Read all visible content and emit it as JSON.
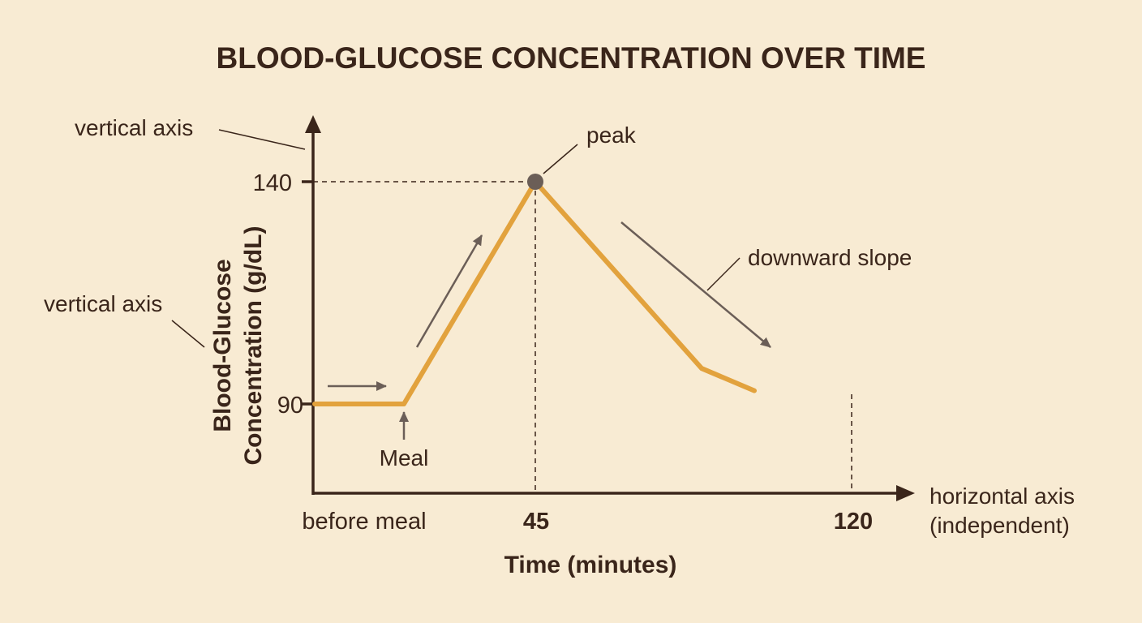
{
  "chart_data": {
    "type": "line",
    "title": "BLOOD-GLUCOSE CONCENTRATION OVER TIME",
    "xlabel": "Time (minutes)",
    "ylabel_line1": "Blood-Glucose",
    "ylabel_line2": "Concentration (g/dL)",
    "x_ticks": [
      {
        "value": 0,
        "label": "before meal"
      },
      {
        "value": 45,
        "label": "45"
      },
      {
        "value": 120,
        "label": "120"
      }
    ],
    "y_ticks": [
      {
        "value": 90,
        "label": "90"
      },
      {
        "value": 140,
        "label": "140"
      }
    ],
    "xlim": [
      -38,
      130
    ],
    "ylim": [
      70,
      155
    ],
    "series": [
      {
        "color": "#e2a23d",
        "x": [
          -38,
          0,
          45,
          102,
          120
        ],
        "y": [
          90,
          90,
          140,
          98,
          93
        ]
      }
    ],
    "peak": {
      "x": 45,
      "y": 140,
      "label": "peak"
    },
    "annotations": {
      "vertical_axis_top": "vertical axis",
      "vertical_axis_side": "vertical axis",
      "meal": "Meal",
      "downward_slope": "downward slope",
      "horizontal_axis_line1": "horizontal axis",
      "horizontal_axis_line2": "(independent)"
    }
  }
}
